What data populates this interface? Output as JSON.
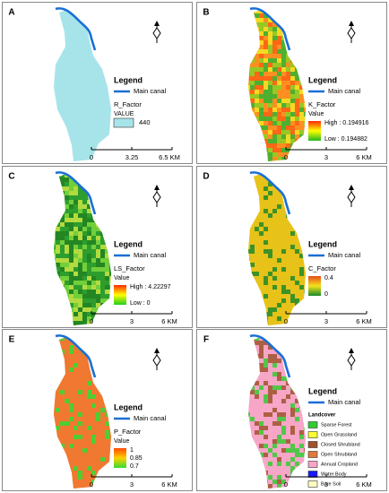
{
  "panels": [
    {
      "letter": "A",
      "legend": "Legend",
      "canal": "Main canal",
      "layer": "R_Factor",
      "field": "VALUE",
      "classes": [
        {
          "label": "440",
          "color": "#a6e4ea"
        }
      ],
      "scale": [
        "0",
        "3.25",
        "6.5 KM"
      ]
    },
    {
      "letter": "B",
      "legend": "Legend",
      "canal": "Main canal",
      "layer": "K_Factor",
      "field": "Value",
      "ramp": {
        "labels": [
          "High : 0.194916",
          "Low : 0.194882"
        ],
        "colors": [
          "#ff2a00",
          "#ffff00",
          "#22b822"
        ]
      },
      "scale": [
        "0",
        "3",
        "6 KM"
      ]
    },
    {
      "letter": "C",
      "legend": "Legend",
      "canal": "Main canal",
      "layer": "LS_Factor",
      "field": "Value",
      "ramp": {
        "labels": [
          "High : 4.22297",
          "Low : 0"
        ],
        "colors": [
          "#ff2a00",
          "#ffff00",
          "#22cc22"
        ]
      },
      "scale": [
        "0",
        "3",
        "6 KM"
      ]
    },
    {
      "letter": "D",
      "legend": "Legend",
      "canal": "Main canal",
      "layer": "C_Factor",
      "ramp": {
        "labels": [
          "0.4",
          "0"
        ],
        "colors": [
          "#e84a1a",
          "#f2e21a",
          "#1a8a2a"
        ]
      },
      "scale": [
        "0",
        "3",
        "6 KM"
      ]
    },
    {
      "letter": "E",
      "legend": "Legend",
      "canal": "Main canal",
      "layer": "P_Factor",
      "field": "Value",
      "ramp": {
        "labels": [
          "1",
          "0.85",
          "0.7"
        ],
        "colors": [
          "#ff4a00",
          "#ffd000",
          "#33dd33"
        ]
      },
      "scale": [
        "0",
        "3",
        "6 KM"
      ]
    },
    {
      "letter": "F",
      "legend": "Legend",
      "canal": "Main canal",
      "field": "Landcover",
      "classes": [
        {
          "label": "Sparse Forest",
          "color": "#33cc33"
        },
        {
          "label": "Open Grassland",
          "color": "#ffff33"
        },
        {
          "label": "Closed Shrubland",
          "color": "#a0522d"
        },
        {
          "label": "Open Shrubland",
          "color": "#e07a3a"
        },
        {
          "label": "Annual Cropland",
          "color": "#f7a6c8"
        },
        {
          "label": "Water Body",
          "color": "#1a1aff"
        },
        {
          "label": "Bare Soil",
          "color": "#fffcc0"
        }
      ],
      "scale": [
        "0",
        "3",
        "6 KM"
      ]
    }
  ]
}
